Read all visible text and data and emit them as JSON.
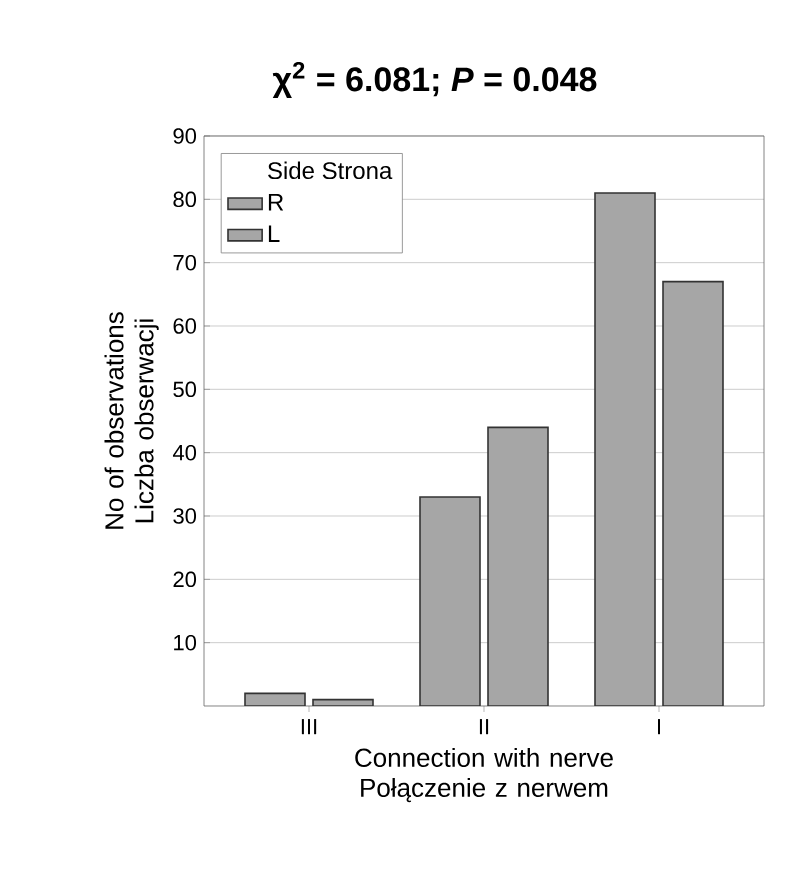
{
  "chart_data": {
    "type": "bar",
    "title": "χ$^{2}$ = 6.081; *P* = 0.048",
    "xlabel": "Connection with nerve Połączenie z nerwem",
    "ylabel": "No of observations Liczba obserwacji",
    "legend_title": "Side Strona",
    "categories": [
      "III",
      "II",
      "I"
    ],
    "series": [
      {
        "name": "R",
        "color": "#a6a6a6",
        "values": [
          2,
          33,
          81
        ]
      },
      {
        "name": "L",
        "color": "#a6a6a6",
        "values": [
          1,
          44,
          67
        ]
      }
    ],
    "ylim": [
      0,
      90
    ],
    "yticks": [
      10,
      20,
      30,
      40,
      50,
      60,
      70,
      80,
      90
    ],
    "grid": "y",
    "legend": "top left"
  }
}
